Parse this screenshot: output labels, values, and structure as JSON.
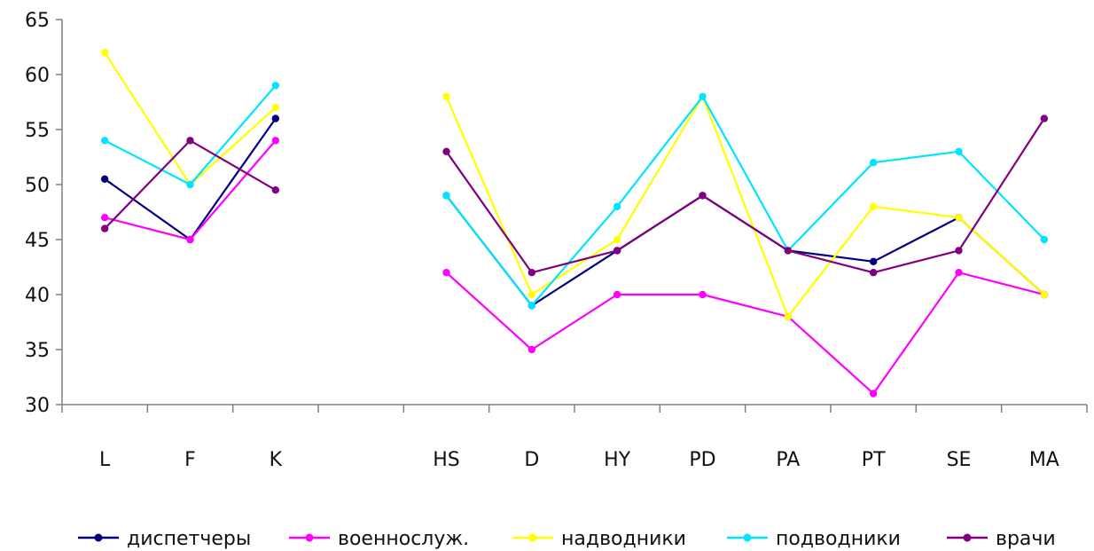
{
  "chart_data": {
    "type": "line",
    "categories": [
      "L",
      "F",
      "K",
      "",
      "HS",
      "D",
      "HY",
      "PD",
      "PA",
      "PT",
      "SE",
      "MA"
    ],
    "ylim": [
      30,
      65
    ],
    "yticks": [
      30,
      35,
      40,
      45,
      50,
      55,
      60,
      65
    ],
    "legend_position": "bottom",
    "grid": false,
    "series": [
      {
        "name": "диспетчеры",
        "color": "#00007f",
        "values": [
          50.5,
          45,
          56,
          null,
          49,
          39,
          44,
          49,
          44,
          43,
          47,
          40
        ]
      },
      {
        "name": "военнослуж.",
        "color": "#ff00ff",
        "values": [
          47,
          45,
          54,
          null,
          42,
          35,
          40,
          40,
          38,
          31,
          42,
          40
        ]
      },
      {
        "name": "надводники",
        "color": "#ffff00",
        "values": [
          62,
          50,
          57,
          null,
          58,
          40,
          45,
          58,
          38,
          48,
          47,
          40
        ]
      },
      {
        "name": "подводники",
        "color": "#00e5ff",
        "values": [
          54,
          50,
          59,
          null,
          49,
          39,
          48,
          58,
          44,
          52,
          53,
          45
        ]
      },
      {
        "name": "врачи",
        "color": "#800080",
        "values": [
          46,
          54,
          49.5,
          null,
          53,
          42,
          44,
          49,
          44,
          42,
          44,
          56
        ]
      }
    ]
  }
}
